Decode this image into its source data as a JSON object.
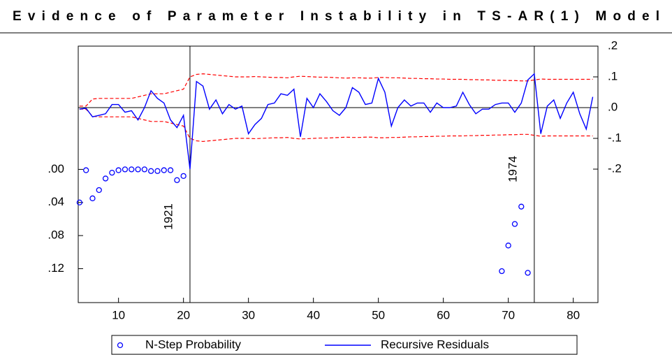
{
  "chart_data": {
    "type": "line",
    "title": "Evidence of Parameter Instability in TS-AR(1) Model",
    "xlim": [
      3.8,
      83.8
    ],
    "xticks": [
      10,
      20,
      30,
      40,
      50,
      60,
      70,
      80
    ],
    "ylim": [
      0.161,
      -0.149
    ],
    "yticks": [
      {
        "value": 0,
        "label": ".00"
      },
      {
        "value": 0.04,
        "label": ".04"
      },
      {
        "value": 0.08,
        "label": ".08"
      },
      {
        "value": 0.12,
        "label": ".12"
      }
    ],
    "y2lim": [
      -0.634,
      0.2
    ],
    "y2ticks": [
      {
        "value": 0.2,
        "label": ".2"
      },
      {
        "value": 0.1,
        "label": ".1"
      },
      {
        "value": 0,
        "label": ".0"
      },
      {
        "value": -0.1,
        "label": "-.1"
      },
      {
        "value": -0.2,
        "label": "-.2"
      }
    ],
    "vlines": [
      21,
      74
    ],
    "annotations": [
      {
        "text": "1921",
        "x": 21
      },
      {
        "text": "1974",
        "x": 74
      }
    ],
    "series": [
      {
        "name": "N-Step Probability",
        "color": "#0000ff",
        "axis": "y",
        "marker": "circle",
        "x": [
          4,
          5,
          6,
          7,
          8,
          9,
          10,
          11,
          12,
          13,
          14,
          15,
          16,
          17,
          18,
          19,
          20,
          69,
          70,
          71,
          72,
          73
        ],
        "values": [
          0.04,
          0.001,
          0.035,
          0.025,
          0.011,
          0.004,
          0.001,
          0.0,
          0.0,
          0.0,
          0.0,
          0.002,
          0.002,
          0.001,
          0.001,
          0.013,
          0.008,
          0.123,
          0.092,
          0.066,
          0.045,
          0.125
        ]
      },
      {
        "name": "Recursive Residuals",
        "color": "#0000ff",
        "axis": "y2",
        "marker": "line",
        "x": [
          4,
          5,
          6,
          7,
          8,
          9,
          10,
          11,
          12,
          13,
          14,
          15,
          16,
          17,
          18,
          19,
          20,
          21,
          22,
          23,
          24,
          25,
          26,
          27,
          28,
          29,
          30,
          31,
          32,
          33,
          34,
          35,
          36,
          37,
          38,
          39,
          40,
          41,
          42,
          43,
          44,
          45,
          46,
          47,
          48,
          49,
          50,
          51,
          52,
          53,
          54,
          55,
          56,
          57,
          58,
          59,
          60,
          61,
          62,
          63,
          64,
          65,
          66,
          67,
          68,
          69,
          70,
          71,
          72,
          73,
          74,
          75,
          76,
          77,
          78,
          79,
          80,
          81,
          82,
          83
        ],
        "values": [
          -0.005,
          -0.002,
          -0.03,
          -0.025,
          -0.02,
          0.01,
          0.01,
          -0.015,
          -0.01,
          -0.04,
          0.0,
          0.055,
          0.03,
          0.015,
          -0.04,
          -0.065,
          -0.025,
          -0.2,
          0.085,
          0.07,
          -0.005,
          0.025,
          -0.02,
          0.01,
          -0.005,
          0.005,
          -0.085,
          -0.055,
          -0.035,
          0.01,
          0.015,
          0.045,
          0.04,
          0.06,
          -0.095,
          0.03,
          0.0,
          0.045,
          0.02,
          -0.01,
          -0.025,
          0.0,
          0.065,
          0.05,
          0.01,
          0.015,
          0.095,
          0.05,
          -0.06,
          0.0,
          0.025,
          0.005,
          0.015,
          0.015,
          -0.015,
          0.015,
          0.0,
          0.0,
          0.005,
          0.05,
          0.01,
          -0.02,
          -0.005,
          -0.005,
          0.01,
          0.015,
          0.015,
          -0.015,
          0.015,
          0.09,
          0.11,
          -0.085,
          0.005,
          0.025,
          -0.035,
          0.015,
          0.05,
          -0.02,
          -0.07,
          0.035
        ]
      }
    ],
    "bands": {
      "color": "#ff0000",
      "axis": "y2",
      "upper": [
        0.005,
        0.005,
        0.028,
        0.03,
        0.03,
        0.03,
        0.03,
        0.03,
        0.03,
        0.035,
        0.04,
        0.045,
        0.045,
        0.045,
        0.05,
        0.055,
        0.06,
        0.1,
        0.108,
        0.11,
        0.108,
        0.106,
        0.104,
        0.102,
        0.1,
        0.1,
        0.1,
        0.101,
        0.1,
        0.099,
        0.098,
        0.098,
        0.097,
        0.1,
        0.102,
        0.101,
        0.1,
        0.099,
        0.099,
        0.098,
        0.097,
        0.096,
        0.097,
        0.097,
        0.096,
        0.096,
        0.098,
        0.098,
        0.097,
        0.097,
        0.096,
        0.095,
        0.095,
        0.094,
        0.094,
        0.093,
        0.093,
        0.092,
        0.092,
        0.092,
        0.091,
        0.091,
        0.09,
        0.09,
        0.089,
        0.089,
        0.088,
        0.088,
        0.087,
        0.087,
        0.09,
        0.093,
        0.092,
        0.092,
        0.092,
        0.092,
        0.092,
        0.092,
        0.092,
        0.092
      ],
      "lower": [
        -0.005,
        -0.005,
        -0.028,
        -0.03,
        -0.03,
        -0.03,
        -0.03,
        -0.03,
        -0.03,
        -0.035,
        -0.04,
        -0.045,
        -0.045,
        -0.045,
        -0.05,
        -0.055,
        -0.06,
        -0.1,
        -0.108,
        -0.11,
        -0.108,
        -0.106,
        -0.104,
        -0.102,
        -0.1,
        -0.1,
        -0.1,
        -0.101,
        -0.1,
        -0.099,
        -0.098,
        -0.098,
        -0.097,
        -0.1,
        -0.102,
        -0.101,
        -0.1,
        -0.099,
        -0.099,
        -0.098,
        -0.097,
        -0.096,
        -0.097,
        -0.097,
        -0.096,
        -0.096,
        -0.098,
        -0.098,
        -0.097,
        -0.097,
        -0.096,
        -0.095,
        -0.095,
        -0.094,
        -0.094,
        -0.093,
        -0.093,
        -0.092,
        -0.092,
        -0.092,
        -0.091,
        -0.091,
        -0.09,
        -0.09,
        -0.089,
        -0.089,
        -0.088,
        -0.088,
        -0.087,
        -0.087,
        -0.09,
        -0.093,
        -0.092,
        -0.092,
        -0.092,
        -0.092,
        -0.092,
        -0.092,
        -0.092,
        -0.092
      ]
    }
  }
}
